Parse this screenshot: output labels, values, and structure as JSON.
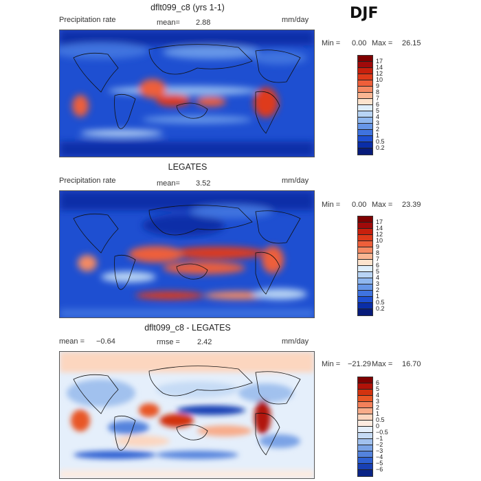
{
  "season": "DJF",
  "panels": [
    {
      "title": "dflt099_c8 (yrs 1-1)",
      "left_label": "Precipitation rate",
      "mid_label": "mean=",
      "mid_value": "2.88",
      "units": "mm/day",
      "min_label": "Min =",
      "min_value": "0.00",
      "max_label": "Max =",
      "max_value": "26.15",
      "colorbar_ticks": [
        "17",
        "14",
        "12",
        "10",
        "9",
        "8",
        "7",
        "6",
        "5",
        "4",
        "3",
        "2",
        "1",
        "0.5",
        "0.2"
      ]
    },
    {
      "title": "LEGATES",
      "left_label": "Precipitation rate",
      "mid_label": "mean=",
      "mid_value": "3.52",
      "units": "mm/day",
      "min_label": "Min =",
      "min_value": "0.00",
      "max_label": "Max =",
      "max_value": "23.39",
      "colorbar_ticks": [
        "17",
        "14",
        "12",
        "10",
        "9",
        "8",
        "7",
        "6",
        "5",
        "4",
        "3",
        "2",
        "1",
        "0.5",
        "0.2"
      ]
    },
    {
      "title": "dflt099_c8 - LEGATES",
      "left_label": "mean =",
      "left_value": "−0.64",
      "mid_label": "rmse =",
      "mid_value": "2.42",
      "units": "mm/day",
      "min_label": "Min =",
      "min_value": "−21.29",
      "max_label": "Max =",
      "max_value": "16.70",
      "colorbar_ticks": [
        "6",
        "5",
        "4",
        "3",
        "2",
        "1",
        "0.5",
        "0",
        "−0.5",
        "−1",
        "−2",
        "−3",
        "−4",
        "−5",
        "−6"
      ]
    }
  ],
  "colors": {
    "precip_scale": [
      "#7f0000",
      "#a00a0a",
      "#c8200d",
      "#de3a1a",
      "#ee5f3a",
      "#f48a64",
      "#f9b693",
      "#fde3cd",
      "#dfeefb",
      "#b8d4f4",
      "#8fb7ef",
      "#6696e8",
      "#3f73df",
      "#1e4fd1",
      "#0a2ea8",
      "#071b7a"
    ],
    "diff_scale": [
      "#7f0000",
      "#b11208",
      "#d2330f",
      "#e85726",
      "#f3805a",
      "#f8ac8a",
      "#fcd6bf",
      "#fdebe0",
      "#e5effb",
      "#c6dbf5",
      "#a1c1ee",
      "#7aa3e6",
      "#5483dd",
      "#2e60d2",
      "#1840b4",
      "#0a2486"
    ]
  }
}
